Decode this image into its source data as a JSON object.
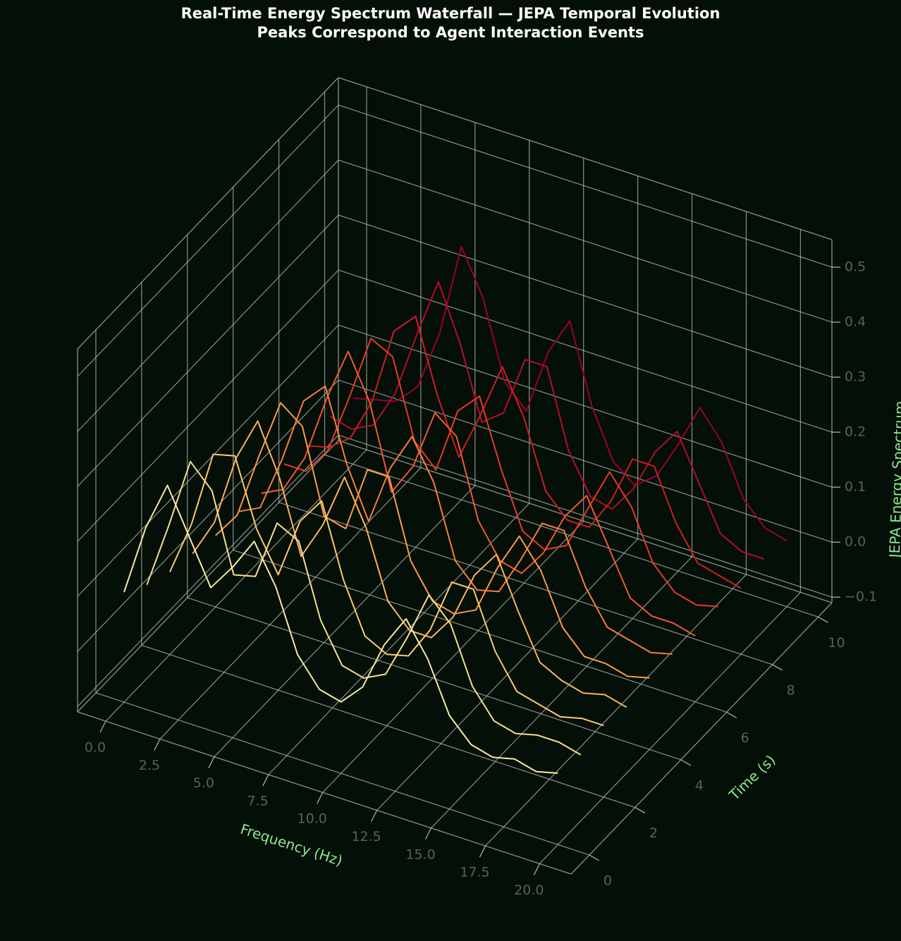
{
  "chart_data": {
    "type": "line3d",
    "title": "Real-Time Energy Spectrum Waterfall — JEPA Temporal Evolution",
    "subtitle": "Peaks Correspond to Agent Interaction Events",
    "xlabel": "Frequency (Hz)",
    "ylabel": "Time (s)",
    "zlabel": "JEPA Energy Spectrum",
    "grid": true,
    "x": [
      0,
      1,
      2,
      3,
      4,
      5,
      6,
      7,
      8,
      9,
      10,
      11,
      12,
      13,
      14,
      15,
      16,
      17,
      18,
      19,
      20
    ],
    "series": [
      {
        "t": 0,
        "color": "#f6eaa0",
        "values": [
          0.09,
          0.22,
          0.31,
          0.23,
          0.15,
          0.2,
          0.26,
          0.19,
          0.08,
          0.03,
          0.02,
          0.06,
          0.15,
          0.21,
          0.15,
          0.06,
          0.02,
          0.01,
          0.02,
          0.01,
          0.02
        ]
      },
      {
        "t": 1,
        "color": "#f9de8a",
        "values": [
          0.06,
          0.18,
          0.31,
          0.27,
          0.13,
          0.14,
          0.25,
          0.23,
          0.1,
          0.03,
          0.02,
          0.04,
          0.12,
          0.21,
          0.17,
          0.07,
          0.02,
          0.01,
          0.02,
          0.02,
          0.01
        ]
      },
      {
        "t": 2,
        "color": "#fcca6e",
        "values": [
          0.04,
          0.14,
          0.28,
          0.29,
          0.17,
          0.1,
          0.21,
          0.26,
          0.13,
          0.04,
          0.02,
          0.03,
          0.09,
          0.19,
          0.19,
          0.09,
          0.03,
          0.02,
          0.01,
          0.02,
          0.02
        ]
      },
      {
        "t": 3,
        "color": "#fdb45a",
        "values": [
          0.03,
          0.1,
          0.23,
          0.31,
          0.22,
          0.09,
          0.16,
          0.26,
          0.18,
          0.06,
          0.02,
          0.02,
          0.07,
          0.16,
          0.21,
          0.12,
          0.04,
          0.02,
          0.01,
          0.02,
          0.01
        ]
      },
      {
        "t": 4,
        "color": "#fd9a4a",
        "values": [
          0.02,
          0.07,
          0.19,
          0.3,
          0.27,
          0.12,
          0.11,
          0.23,
          0.23,
          0.09,
          0.03,
          0.02,
          0.04,
          0.13,
          0.2,
          0.15,
          0.06,
          0.02,
          0.02,
          0.01,
          0.02
        ]
      },
      {
        "t": 5,
        "color": "#f87d3d",
        "values": [
          0.02,
          0.04,
          0.14,
          0.26,
          0.3,
          0.17,
          0.08,
          0.19,
          0.26,
          0.19,
          0.06,
          0.02,
          0.03,
          0.1,
          0.18,
          0.18,
          0.09,
          0.03,
          0.02,
          0.01,
          0.02
        ]
      },
      {
        "t": 6,
        "color": "#f05a32",
        "values": [
          0.01,
          0.03,
          0.1,
          0.22,
          0.32,
          0.24,
          0.09,
          0.15,
          0.26,
          0.23,
          0.09,
          0.03,
          0.02,
          0.07,
          0.15,
          0.2,
          0.12,
          0.04,
          0.02,
          0.02,
          0.01
        ]
      },
      {
        "t": 7,
        "color": "#e43a28",
        "values": [
          0.02,
          0.02,
          0.07,
          0.18,
          0.3,
          0.28,
          0.14,
          0.1,
          0.22,
          0.26,
          0.14,
          0.04,
          0.02,
          0.04,
          0.12,
          0.2,
          0.15,
          0.06,
          0.02,
          0.01,
          0.02
        ]
      },
      {
        "t": 8,
        "color": "#cf1d24",
        "values": [
          0.01,
          0.02,
          0.05,
          0.13,
          0.27,
          0.31,
          0.18,
          0.08,
          0.17,
          0.27,
          0.19,
          0.07,
          0.03,
          0.03,
          0.09,
          0.18,
          0.18,
          0.09,
          0.03,
          0.02,
          0.01
        ]
      },
      {
        "t": 9,
        "color": "#b80c26",
        "values": [
          0.02,
          0.01,
          0.03,
          0.1,
          0.22,
          0.33,
          0.23,
          0.1,
          0.13,
          0.24,
          0.24,
          0.1,
          0.03,
          0.02,
          0.07,
          0.15,
          0.2,
          0.12,
          0.04,
          0.02,
          0.02
        ]
      },
      {
        "t": 10,
        "color": "#9c0028",
        "values": [
          0.01,
          0.02,
          0.03,
          0.07,
          0.18,
          0.35,
          0.27,
          0.13,
          0.09,
          0.21,
          0.28,
          0.14,
          0.05,
          0.02,
          0.05,
          0.12,
          0.2,
          0.15,
          0.06,
          0.02,
          0.01
        ]
      }
    ],
    "xlim": [
      -1.3,
      21.45
    ],
    "ylim": [
      -0.8,
      10.6
    ],
    "zlim": [
      -0.11,
      0.55
    ],
    "xticks": [
      {
        "value": 0,
        "label": "0.0"
      },
      2.5,
      {
        "value": 5,
        "label": "5.0"
      },
      7.5,
      {
        "value": 10,
        "label": "10.0"
      },
      12.5,
      {
        "value": 15,
        "label": "15.0"
      },
      17.5,
      {
        "value": 20,
        "label": "20.0"
      }
    ],
    "yticks": [
      0,
      2,
      4,
      6,
      8,
      10
    ],
    "zticks": [
      {
        "value": -0.1,
        "label": "−0.1"
      },
      {
        "value": 0,
        "label": "0.0"
      },
      0.1,
      0.2,
      0.3,
      0.4,
      0.5
    ]
  }
}
